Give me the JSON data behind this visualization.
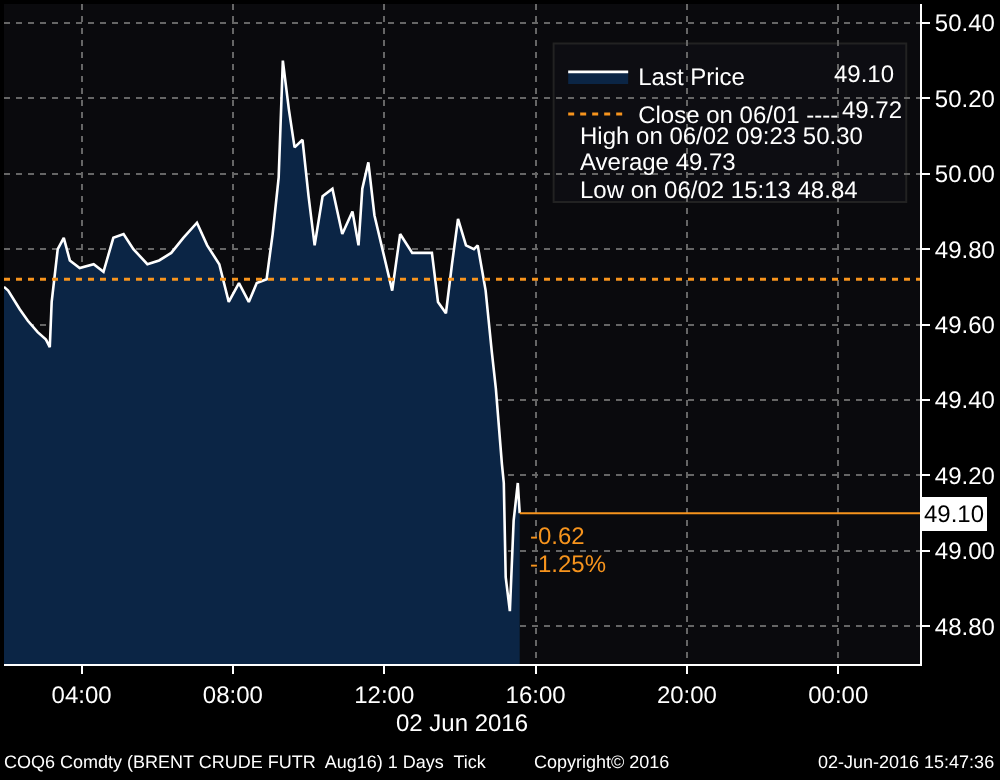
{
  "chart_data": {
    "type": "area",
    "xlabel": "02 Jun 2016",
    "x": [
      1.95,
      2.06,
      2.37,
      2.58,
      2.84,
      3.06,
      3.16,
      3.21,
      3.37,
      3.53,
      3.69,
      3.95,
      4.32,
      4.58,
      4.84,
      5.11,
      5.37,
      5.74,
      6.05,
      6.37,
      6.69,
      7.05,
      7.32,
      7.64,
      7.89,
      8.16,
      8.42,
      8.63,
      8.89,
      9.05,
      9.21,
      9.32,
      9.48,
      9.63,
      9.84,
      10.0,
      10.16,
      10.37,
      10.63,
      10.89,
      11.16,
      11.32,
      11.42,
      11.58,
      11.74,
      12.21,
      12.42,
      12.74,
      13.0,
      13.26,
      13.42,
      13.63,
      13.79,
      13.95,
      14.16,
      14.37,
      14.47,
      14.68,
      14.84,
      14.95,
      15.11,
      15.16,
      15.21,
      15.32,
      15.42,
      15.53,
      15.58
    ],
    "series": [
      {
        "name": "Last Price",
        "color": "#ffffff",
        "values": [
          49.7,
          49.69,
          49.64,
          49.61,
          49.58,
          49.56,
          49.54,
          49.66,
          49.8,
          49.83,
          49.77,
          49.75,
          49.76,
          49.74,
          49.83,
          49.84,
          49.8,
          49.76,
          49.77,
          49.79,
          49.83,
          49.87,
          49.81,
          49.76,
          49.66,
          49.71,
          49.66,
          49.71,
          49.72,
          49.84,
          49.99,
          50.3,
          50.17,
          50.07,
          50.09,
          49.94,
          49.81,
          49.94,
          49.96,
          49.84,
          49.9,
          49.81,
          49.96,
          50.03,
          49.89,
          49.69,
          49.84,
          49.79,
          49.79,
          49.79,
          49.66,
          49.63,
          49.76,
          49.88,
          49.81,
          49.8,
          49.81,
          49.69,
          49.53,
          49.43,
          49.23,
          49.18,
          48.93,
          48.84,
          49.08,
          49.18,
          49.1
        ]
      }
    ],
    "xlim": [
      1.95,
      26.16
    ],
    "xticks": [
      {
        "value": 4,
        "label": "04:00"
      },
      {
        "value": 8,
        "label": "08:00"
      },
      {
        "value": 12,
        "label": "12:00"
      },
      {
        "value": 16,
        "label": "16:00"
      },
      {
        "value": 20,
        "label": "20:00"
      },
      {
        "value": 24,
        "label": "00:00"
      }
    ],
    "ylim": [
      48.7,
      50.45
    ],
    "yticks": [
      {
        "value": 48.8,
        "label": "48.80"
      },
      {
        "value": 49.0,
        "label": "49.00"
      },
      {
        "value": 49.2,
        "label": "49.20"
      },
      {
        "value": 49.4,
        "label": "49.40"
      },
      {
        "value": 49.6,
        "label": "49.60"
      },
      {
        "value": 49.8,
        "label": "49.80"
      },
      {
        "value": 50.0,
        "label": "50.00"
      },
      {
        "value": 50.2,
        "label": "50.20"
      },
      {
        "value": 50.4,
        "label": "50.40"
      }
    ],
    "ref_lines": [
      {
        "axis": "y",
        "value": 49.72,
        "label": "Close on 06/01 ----",
        "color": "#f7941d",
        "line_style": "dotted"
      },
      {
        "axis": "y",
        "value": 49.1,
        "label": "49.10",
        "color": "#f7941d",
        "line_style": "solid"
      }
    ],
    "annotations": [
      "49.10",
      "49.72",
      "High on 06/02 09:23 50.30",
      "Average 49.73",
      "Low on 06/02 15:13 48.84",
      "COQ6 Comdty (BRENT CRUDE FUTR  Aug16) 1 Days  Tick",
      "Copyright© 2016",
      "02-Jun-2016 15:47:36",
      {
        "text": "-0.62",
        "x": 15.58,
        "y": 49.1
      },
      {
        "text": "-1.25%",
        "x": 15.58,
        "y": 49.1
      }
    ],
    "grid": true,
    "legend": "top right",
    "marker": "none",
    "line_style": "solid"
  }
}
